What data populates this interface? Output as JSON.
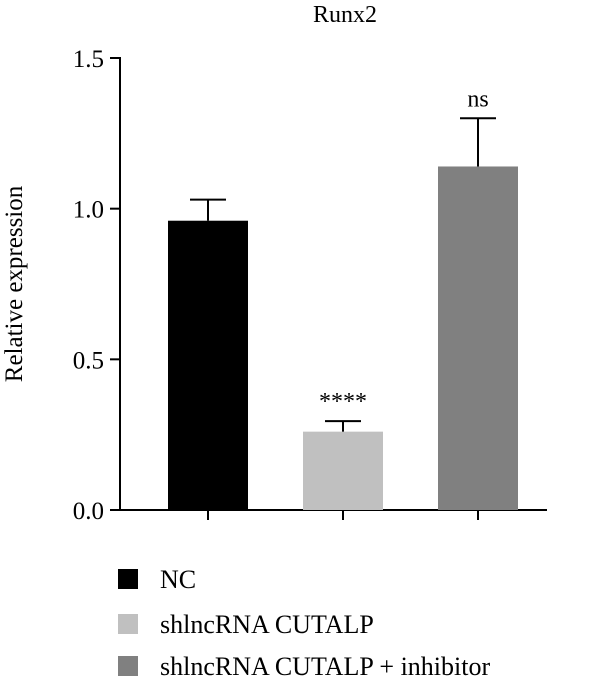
{
  "chart_data": {
    "type": "bar",
    "title": "Runx2",
    "xlabel": "",
    "ylabel": "Relative expression",
    "ylim": [
      0,
      1.5
    ],
    "yticks": [
      "0.0",
      "0.5",
      "1.0",
      "1.5"
    ],
    "legend_position": "bottom",
    "categories": [
      "NC",
      "shlncRNA CUTALP",
      "shlncRNA CUTALP + inhibitor"
    ],
    "values": [
      0.96,
      0.26,
      1.14
    ],
    "error": [
      0.07,
      0.035,
      0.16
    ],
    "significance": [
      "",
      "****",
      "ns"
    ],
    "colors": [
      "#000000",
      "#c0c0c0",
      "#808080"
    ],
    "legend": [
      "NC",
      "shlncRNA CUTALP",
      "shlncRNA CUTALP + inhibitor"
    ]
  }
}
